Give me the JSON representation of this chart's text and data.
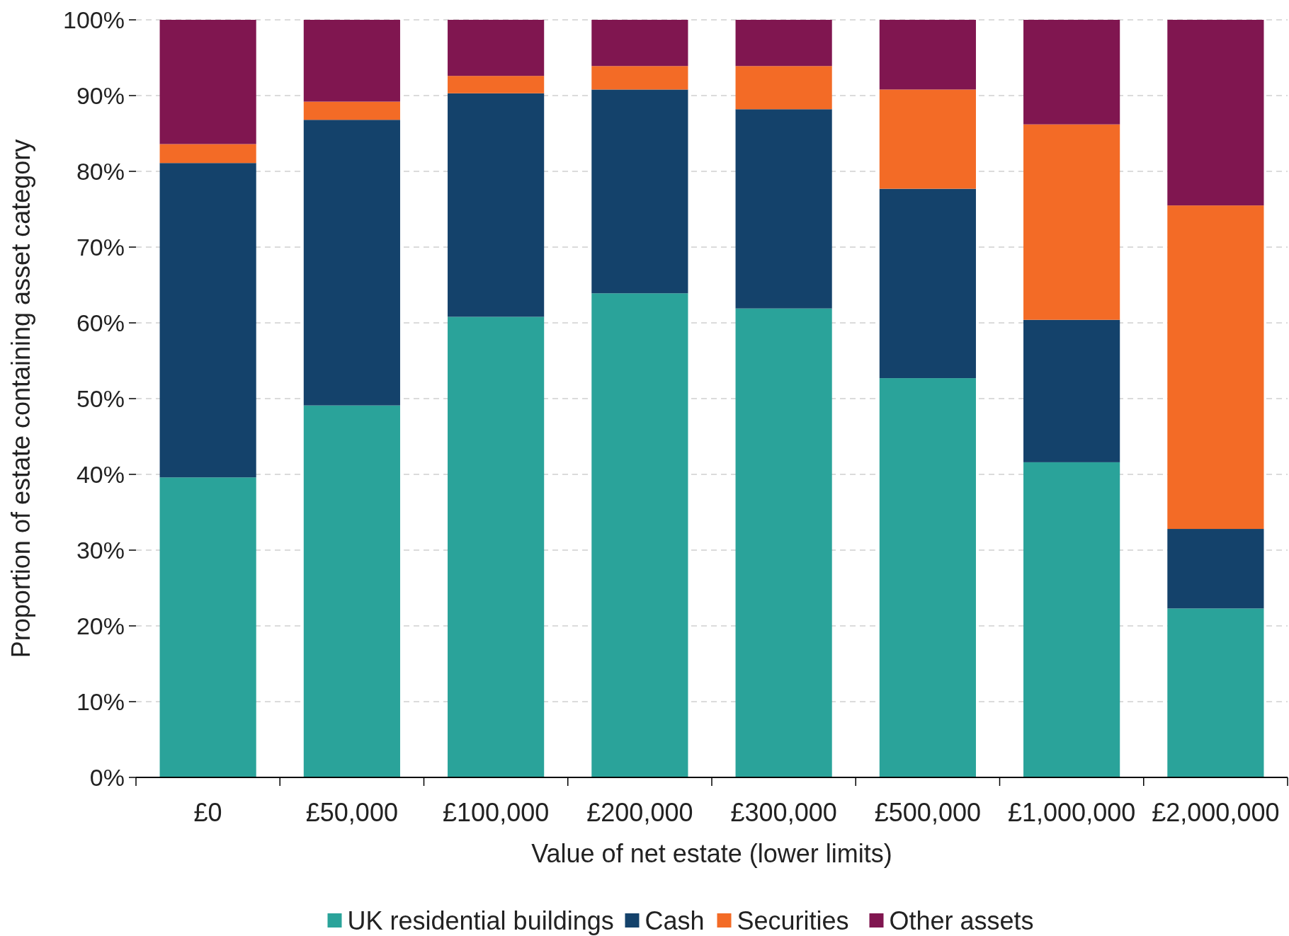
{
  "chart_data": {
    "type": "bar",
    "stacked": true,
    "xlabel": "Value of net estate (lower limits)",
    "ylabel": "Proportion of estate containing asset category",
    "categories": [
      "£0",
      "£50,000",
      "£100,000",
      "£200,000",
      "£300,000",
      "£500,000",
      "£1,000,000",
      "£2,000,000"
    ],
    "series": [
      {
        "name": "UK residential buildings",
        "color": "#2aa39a",
        "values": [
          39.6,
          49.1,
          60.8,
          63.9,
          61.9,
          52.7,
          41.6,
          22.3
        ]
      },
      {
        "name": "Cash",
        "color": "#14426b",
        "values": [
          41.5,
          37.7,
          29.5,
          26.9,
          26.3,
          25.0,
          18.8,
          10.5
        ]
      },
      {
        "name": "Securities",
        "color": "#f36b26",
        "values": [
          2.5,
          2.4,
          2.3,
          3.1,
          5.7,
          13.1,
          25.8,
          42.7
        ]
      },
      {
        "name": "Other assets",
        "color": "#801650",
        "values": [
          16.4,
          10.8,
          7.4,
          6.1,
          6.1,
          9.2,
          13.8,
          24.5
        ]
      }
    ],
    "ylim": [
      0,
      100
    ],
    "yticks": [
      {
        "value": 0,
        "label": "0%"
      },
      {
        "value": 10,
        "label": "10%"
      },
      {
        "value": 20,
        "label": "20%"
      },
      {
        "value": 30,
        "label": "30%"
      },
      {
        "value": 40,
        "label": "40%"
      },
      {
        "value": 50,
        "label": "50%"
      },
      {
        "value": 60,
        "label": "60%"
      },
      {
        "value": 70,
        "label": "70%"
      },
      {
        "value": 80,
        "label": "80%"
      },
      {
        "value": 90,
        "label": "90%"
      },
      {
        "value": 100,
        "label": "100%"
      }
    ],
    "grid": "y",
    "legend": "bottom"
  }
}
